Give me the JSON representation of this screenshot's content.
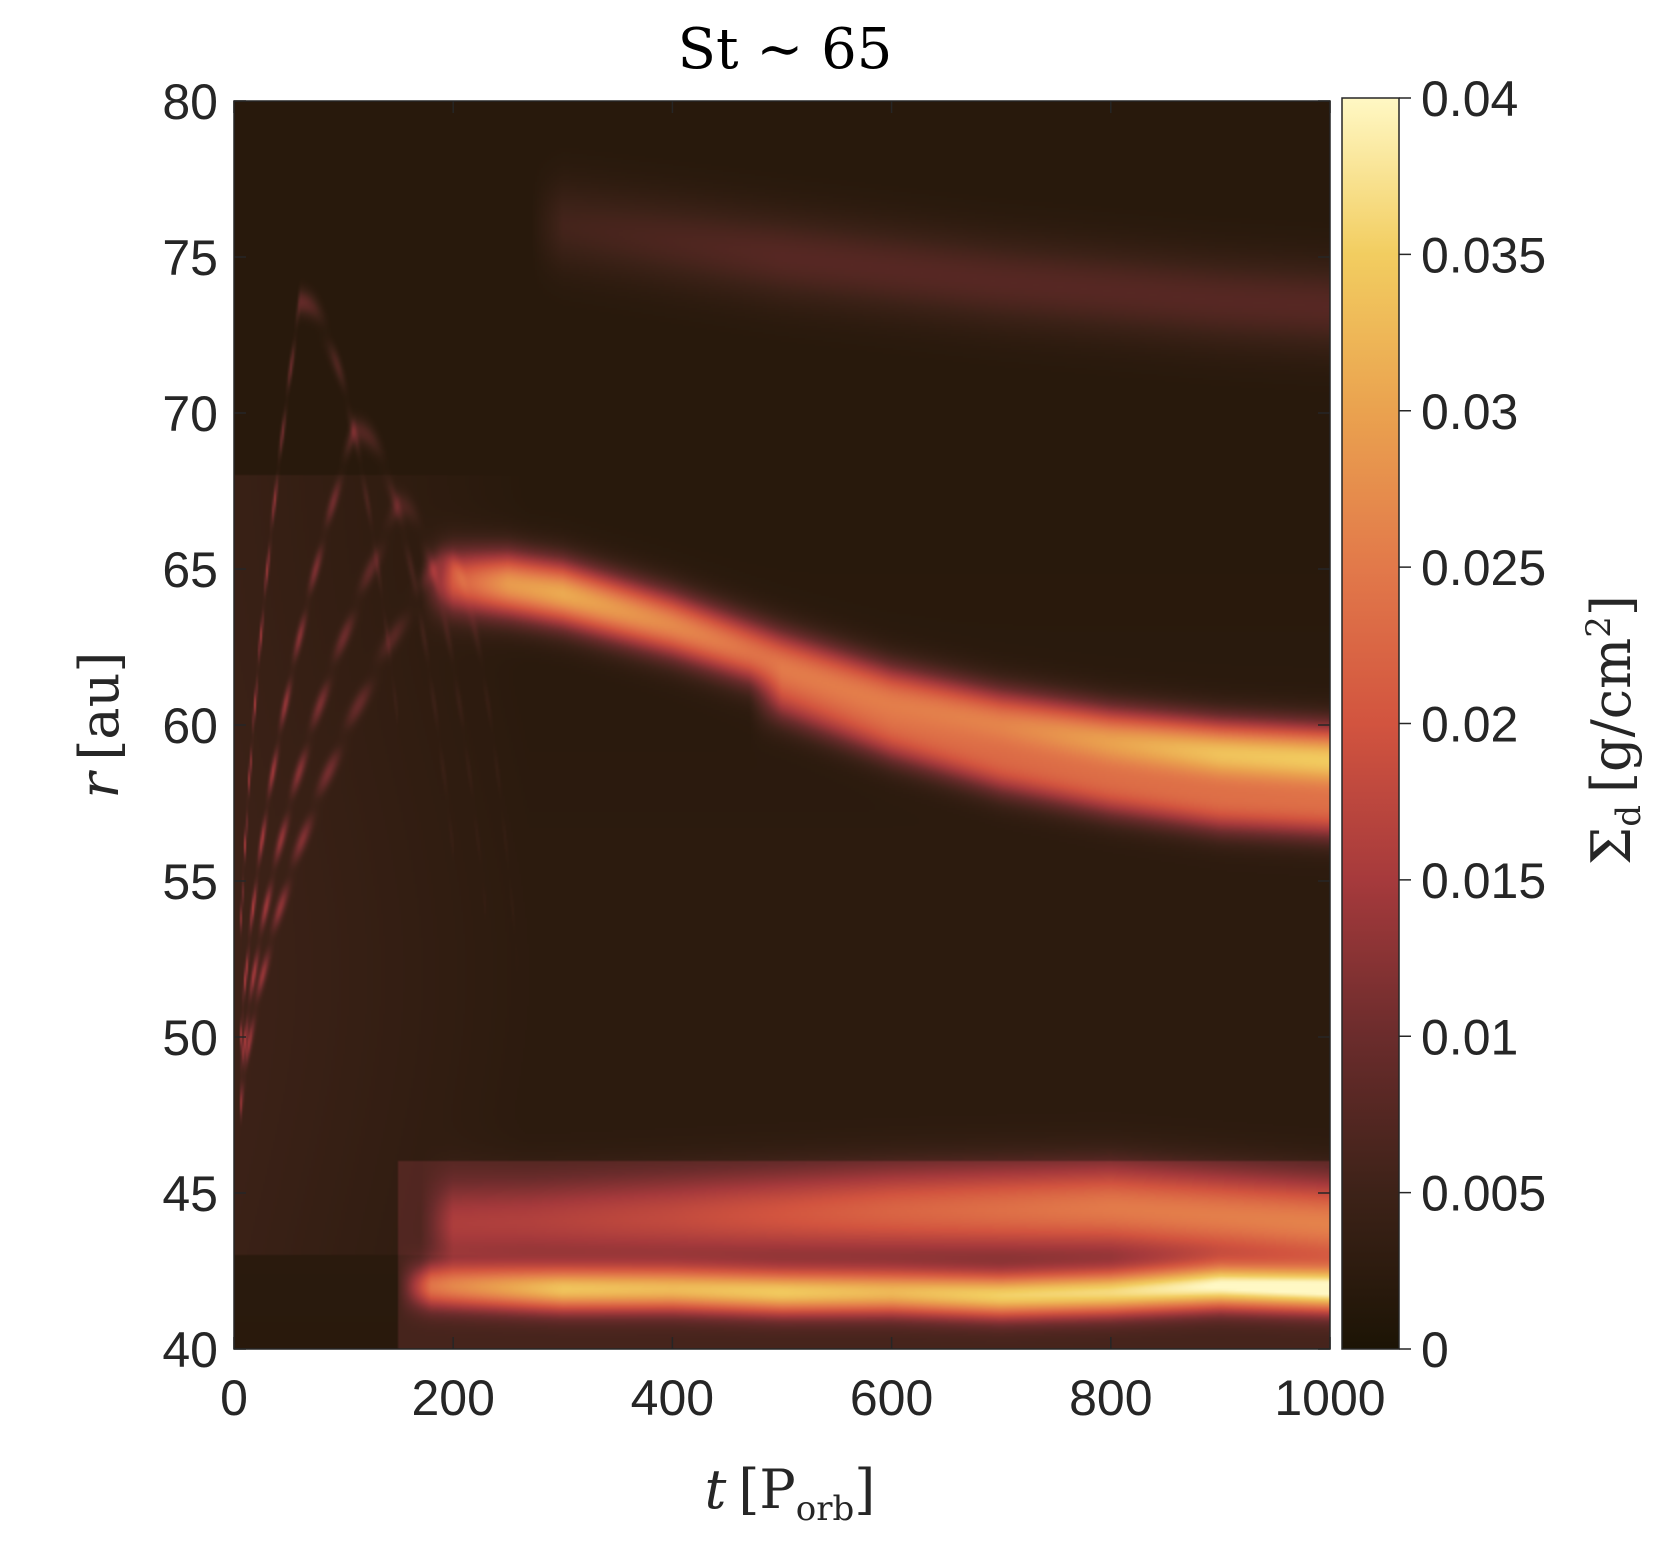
{
  "chart_data": {
    "type": "heatmap",
    "title": "St ∼ 65",
    "xlabel": {
      "symbol": "t",
      "open": "[P",
      "sub": "orb",
      "close": "]"
    },
    "ylabel": {
      "symbol": "r",
      "rest": "[au]"
    },
    "colorbar_label": {
      "symbol": "Σ",
      "sub": "d",
      "rest": "[g/cm",
      "sup": "2",
      "close": "]"
    },
    "xlim": [
      0,
      1000
    ],
    "ylim": [
      40,
      80
    ],
    "clim": [
      0,
      0.04
    ],
    "x_ticks": [
      0,
      200,
      400,
      600,
      800,
      1000
    ],
    "x_tick_labels": [
      "0",
      "200",
      "400",
      "600",
      "800",
      "1000"
    ],
    "y_ticks": [
      40,
      45,
      50,
      55,
      60,
      65,
      70,
      75,
      80
    ],
    "y_tick_labels": [
      "40",
      "45",
      "50",
      "55",
      "60",
      "65",
      "70",
      "75",
      "80"
    ],
    "colorbar_ticks": [
      0,
      0.005,
      0.01,
      0.015,
      0.02,
      0.025,
      0.03,
      0.035,
      0.04
    ],
    "colorbar_tick_labels": [
      "0",
      "0.005",
      "0.01",
      "0.015",
      "0.02",
      "0.025",
      "0.03",
      "0.035",
      "0.04"
    ],
    "colormap": [
      "#1c1405",
      "#3d2218",
      "#6b2c2c",
      "#a63a3c",
      "#d2543f",
      "#e2794a",
      "#eaa24f",
      "#f2cd60",
      "#fff8c4"
    ],
    "background_value": 0.0025,
    "features": {
      "outer_ring": {
        "t": [
          200,
          250,
          300,
          400,
          500,
          600,
          700,
          800,
          900,
          1000
        ],
        "r": [
          64.6,
          64.5,
          64.2,
          63.2,
          62.0,
          60.9,
          60.1,
          59.5,
          59.1,
          58.9
        ],
        "peak": [
          0.018,
          0.027,
          0.029,
          0.025,
          0.021,
          0.021,
          0.023,
          0.027,
          0.031,
          0.032
        ]
      },
      "outer_ring_shelf": {
        "t": [
          500,
          600,
          700,
          800,
          900,
          1000
        ],
        "r": [
          60.8,
          59.6,
          58.6,
          57.9,
          57.4,
          57.2
        ],
        "peak": [
          0.01,
          0.014,
          0.016,
          0.017,
          0.018,
          0.018
        ]
      },
      "inner_ring": {
        "t": [
          180,
          300,
          400,
          500,
          600,
          700,
          800,
          900,
          1000
        ],
        "r": [
          42.0,
          41.9,
          41.9,
          41.8,
          41.8,
          41.7,
          41.8,
          42.0,
          41.9
        ],
        "peak": [
          0.018,
          0.027,
          0.026,
          0.028,
          0.026,
          0.029,
          0.03,
          0.033,
          0.034
        ]
      },
      "inner_ring_halo": {
        "t": [
          200,
          400,
          600,
          800,
          1000
        ],
        "r": [
          44.0,
          44.2,
          44.4,
          44.5,
          44.0
        ],
        "peak": [
          0.009,
          0.012,
          0.016,
          0.019,
          0.02
        ]
      },
      "outer_faint_band": {
        "t": [
          300,
          500,
          700,
          900,
          1000
        ],
        "r": [
          76.0,
          75.0,
          74.2,
          73.6,
          73.4
        ],
        "peak": [
          0.004,
          0.006,
          0.006,
          0.006,
          0.006
        ]
      },
      "early_arcs": [
        {
          "t_peak": 60,
          "r_peak": 73.5,
          "t_end": 150,
          "r_end": 60.0,
          "peak": 0.012
        },
        {
          "t_peak": 110,
          "r_peak": 69.5,
          "t_end": 200,
          "r_end": 56.0,
          "peak": 0.012
        },
        {
          "t_peak": 150,
          "r_peak": 67.0,
          "t_end": 230,
          "r_end": 54.0,
          "peak": 0.011
        },
        {
          "t_peak": 190,
          "r_peak": 65.5,
          "t_end": 260,
          "r_end": 52.0,
          "peak": 0.01
        }
      ]
    }
  }
}
